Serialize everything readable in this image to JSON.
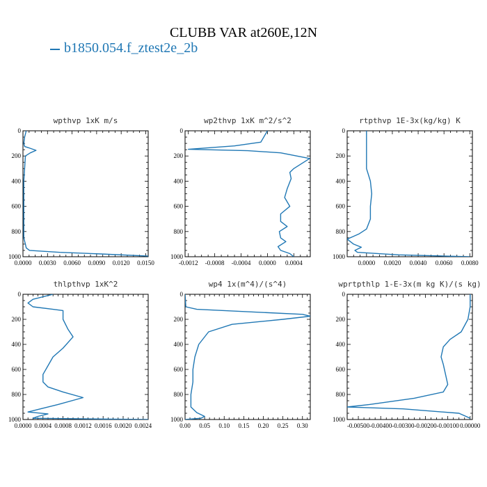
{
  "title": "CLUBB VAR at260E,12N",
  "legend": {
    "label": "b1850.054.f_ztest2e_2b",
    "color": "#1f77b4"
  },
  "chart_data": [
    {
      "type": "line",
      "title": "wpthvp   1xK m/s",
      "xlim": [
        0,
        0.0153
      ],
      "xticks": [
        0,
        0.003,
        0.006,
        0.009,
        0.012,
        0.015
      ],
      "xticklabels": [
        "0.0000",
        "0.0030",
        "0.0060",
        "0.0090",
        "0.0120",
        "0.0150"
      ],
      "ylim": [
        1000,
        0
      ],
      "yticks": [
        0,
        200,
        400,
        600,
        800,
        1000
      ],
      "series": [
        {
          "points": [
            [
              0.0004,
              0
            ],
            [
              0.0002,
              50
            ],
            [
              0.0001,
              100
            ],
            [
              0.0002,
              125
            ],
            [
              0.0007,
              135
            ],
            [
              0.0016,
              155
            ],
            [
              0.0009,
              175
            ],
            [
              0.0003,
              200
            ],
            [
              0.0002,
              300
            ],
            [
              0.0001,
              400
            ],
            [
              0.0001,
              500
            ],
            [
              0.0001,
              600
            ],
            [
              0.0001,
              700
            ],
            [
              0.0001,
              800
            ],
            [
              0.0001,
              850
            ],
            [
              0.0003,
              900
            ],
            [
              0.0004,
              930
            ],
            [
              0.0008,
              950
            ],
            [
              0.0045,
              965
            ],
            [
              0.0095,
              978
            ],
            [
              0.0153,
              995
            ]
          ]
        }
      ]
    },
    {
      "type": "line",
      "title": "wp2thvp   1xK m^2/s^2",
      "xlim": [
        -0.00125,
        0.00065
      ],
      "xticks": [
        -0.0012,
        -0.0008,
        -0.0004,
        0,
        0.0004
      ],
      "xticklabels": [
        "-0.0012",
        "-0.0008",
        "-0.0004",
        "0.0000",
        "0.0004"
      ],
      "ylim": [
        1000,
        0
      ],
      "yticks": [
        0,
        200,
        400,
        600,
        800,
        1000
      ],
      "series": [
        {
          "points": [
            [
              0.0,
              0
            ],
            [
              -0.0001,
              90
            ],
            [
              -0.0005,
              120
            ],
            [
              -0.0012,
              147
            ],
            [
              -0.0003,
              158
            ],
            [
              0.0002,
              175
            ],
            [
              0.00064,
              220
            ],
            [
              0.0004,
              300
            ],
            [
              0.00034,
              330
            ],
            [
              0.00036,
              380
            ],
            [
              0.0003,
              460
            ],
            [
              0.00026,
              530
            ],
            [
              0.00034,
              600
            ],
            [
              0.0002,
              660
            ],
            [
              0.0002,
              720
            ],
            [
              0.0003,
              760
            ],
            [
              0.00018,
              800
            ],
            [
              0.0002,
              850
            ],
            [
              0.00028,
              880
            ],
            [
              0.00016,
              920
            ],
            [
              0.0002,
              950
            ],
            [
              0.00034,
              975
            ],
            [
              0.0004,
              1000
            ]
          ]
        }
      ]
    },
    {
      "type": "line",
      "title": "rtpthvp   1E-3x(kg/kg) K",
      "xlim": [
        -0.0015,
        0.0082
      ],
      "xticks": [
        0,
        0.002,
        0.004,
        0.006,
        0.008
      ],
      "xticklabels": [
        "0.0000",
        "0.0020",
        "0.0040",
        "0.0060",
        "0.0080"
      ],
      "ylim": [
        1000,
        0
      ],
      "yticks": [
        0,
        200,
        400,
        600,
        800,
        1000
      ],
      "series": [
        {
          "points": [
            [
              0.0,
              0
            ],
            [
              0.0,
              100
            ],
            [
              0.0,
              200
            ],
            [
              0.0,
              300
            ],
            [
              0.0003,
              400
            ],
            [
              0.0004,
              500
            ],
            [
              0.0003,
              600
            ],
            [
              0.0003,
              700
            ],
            [
              0.0,
              780
            ],
            [
              -0.0006,
              820
            ],
            [
              -0.0015,
              860
            ],
            [
              -0.001,
              900
            ],
            [
              -0.0004,
              925
            ],
            [
              -0.0009,
              950
            ],
            [
              -0.0007,
              965
            ],
            [
              0.0025,
              985
            ],
            [
              0.008,
              1000
            ]
          ]
        }
      ]
    },
    {
      "type": "line",
      "title": "thlpthvp   1xK^2",
      "xlim": [
        0,
        0.0025
      ],
      "xticks": [
        0,
        0.0004,
        0.0008,
        0.0012,
        0.0016,
        0.002,
        0.0024
      ],
      "xticklabels": [
        "0.0000",
        "0.0004",
        "0.0008",
        "0.0012",
        "0.0016",
        "0.0020",
        "0.0024"
      ],
      "ylim": [
        1000,
        0
      ],
      "yticks": [
        0,
        200,
        400,
        600,
        800,
        1000
      ],
      "series": [
        {
          "points": [
            [
              0.0006,
              0
            ],
            [
              0.0002,
              40
            ],
            [
              0.0001,
              70
            ],
            [
              0.0002,
              100
            ],
            [
              0.0006,
              120
            ],
            [
              0.0008,
              130
            ],
            [
              0.0008,
              200
            ],
            [
              0.0009,
              280
            ],
            [
              0.001,
              340
            ],
            [
              0.0008,
              430
            ],
            [
              0.0006,
              500
            ],
            [
              0.0005,
              570
            ],
            [
              0.0004,
              640
            ],
            [
              0.0004,
              700
            ],
            [
              0.0005,
              740
            ],
            [
              0.0008,
              780
            ],
            [
              0.0012,
              825
            ],
            [
              0.0007,
              880
            ],
            [
              0.0003,
              920
            ],
            [
              0.0001,
              940
            ],
            [
              0.0005,
              955
            ],
            [
              0.0003,
              975
            ],
            [
              0.0002,
              990
            ],
            [
              0.0025,
              1000
            ]
          ]
        }
      ]
    },
    {
      "type": "line",
      "title": "wp4   1x(m^4)/(s^4)",
      "xlim": [
        0,
        0.32
      ],
      "xticks": [
        0,
        0.05,
        0.1,
        0.15,
        0.2,
        0.25,
        0.3
      ],
      "xticklabels": [
        "0.00",
        "0.05",
        "0.10",
        "0.15",
        "0.20",
        "0.25",
        "0.30"
      ],
      "ylim": [
        1000,
        0
      ],
      "yticks": [
        0,
        200,
        400,
        600,
        800,
        1000
      ],
      "series": [
        {
          "points": [
            [
              0.0,
              0
            ],
            [
              0.002,
              100
            ],
            [
              0.03,
              120
            ],
            [
              0.3,
              160
            ],
            [
              0.32,
              175
            ],
            [
              0.25,
              200
            ],
            [
              0.12,
              240
            ],
            [
              0.06,
              300
            ],
            [
              0.035,
              400
            ],
            [
              0.025,
              500
            ],
            [
              0.02,
              600
            ],
            [
              0.02,
              700
            ],
            [
              0.015,
              800
            ],
            [
              0.015,
              900
            ],
            [
              0.03,
              945
            ],
            [
              0.05,
              975
            ],
            [
              0.04,
              990
            ],
            [
              0.0,
              1000
            ]
          ]
        }
      ]
    },
    {
      "type": "line",
      "title": "wprtpthlp   1-E-3x(m kg K)/(s kg)",
      "xlim": [
        -0.0055,
        0.0001
      ],
      "xticks": [
        -0.005,
        -0.004,
        -0.003,
        -0.002,
        -0.001,
        0
      ],
      "xticklabels": [
        "-0.00500",
        "-0.00400",
        "-0.00300",
        "-0.00200",
        "-0.00100",
        "0.00000"
      ],
      "ylim": [
        1000,
        0
      ],
      "yticks": [
        0,
        200,
        400,
        600,
        800,
        1000
      ],
      "series": [
        {
          "points": [
            [
              0.0,
              0
            ],
            [
              0.0,
              100
            ],
            [
              -0.0001,
              200
            ],
            [
              -0.0004,
              300
            ],
            [
              -0.0009,
              360
            ],
            [
              -0.0012,
              420
            ],
            [
              -0.0013,
              500
            ],
            [
              -0.0012,
              560
            ],
            [
              -0.0011,
              640
            ],
            [
              -0.001,
              720
            ],
            [
              -0.0012,
              780
            ],
            [
              -0.0025,
              830
            ],
            [
              -0.0045,
              880
            ],
            [
              -0.0055,
              900
            ],
            [
              -0.003,
              915
            ],
            [
              -0.0005,
              950
            ],
            [
              0.0,
              990
            ]
          ]
        }
      ]
    }
  ]
}
